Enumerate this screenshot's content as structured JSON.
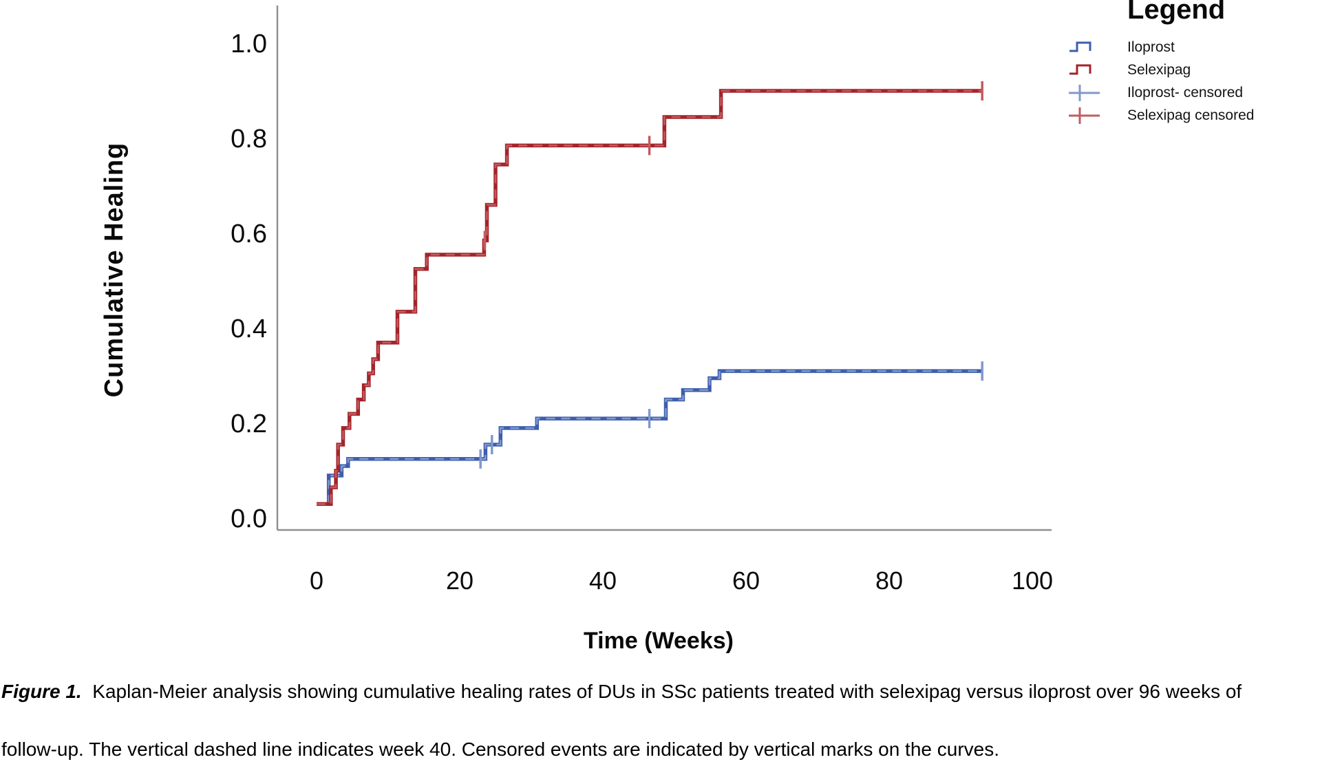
{
  "figure": {
    "caption_prefix": "Figure 1.",
    "caption_line1": "  Kaplan-Meier analysis showing cumulative healing rates of DUs in SSc patients treated with selexipag versus iloprost over 96 weeks of",
    "caption_line2": "follow-up. The vertical dashed line indicates week 40. Censored events are indicated by vertical marks on the curves."
  },
  "legend": {
    "title": "Legend",
    "items": [
      {
        "label": "Iloprost",
        "symbol": "step-line-icon",
        "color_key": "blue"
      },
      {
        "label": "Selexipag",
        "symbol": "step-line-icon",
        "color_key": "red"
      },
      {
        "label": "Iloprost- censored",
        "symbol": "plus-tick-icon",
        "color_key": "blue_light"
      },
      {
        "label": "Selexipag censored",
        "symbol": "plus-tick-icon",
        "color_key": "red_light"
      }
    ]
  },
  "colors": {
    "red": "#a3242a",
    "red_light": "#c25b60",
    "blue": "#3d5eac",
    "blue_light": "#8098cd",
    "axis": "#8f8f8f",
    "text": "#0a0a0a"
  },
  "chart_data": {
    "type": "line",
    "subtype": "kaplan-meier-step",
    "title": "",
    "xlabel": "Time (Weeks)",
    "ylabel": "Cumulative Healing",
    "xlim": [
      0,
      100
    ],
    "ylim": [
      0,
      1
    ],
    "xticks": [
      0,
      20,
      40,
      60,
      80,
      100
    ],
    "ytick_labels": [
      "0.0",
      "0.2",
      "0.4",
      "0.6",
      "0.8",
      "1.0"
    ],
    "grid": false,
    "legend_position": "top-right",
    "series": [
      {
        "name": "Iloprost",
        "color_key": "blue",
        "steps": [
          [
            1.7,
            0.03
          ],
          [
            1.7,
            0.09
          ],
          [
            3.5,
            0.09
          ],
          [
            3.5,
            0.11
          ],
          [
            4.4,
            0.11
          ],
          [
            4.4,
            0.125
          ],
          [
            23.6,
            0.125
          ],
          [
            23.6,
            0.155
          ],
          [
            25.7,
            0.155
          ],
          [
            25.7,
            0.19
          ],
          [
            30.8,
            0.19
          ],
          [
            30.8,
            0.21
          ],
          [
            48.8,
            0.21
          ],
          [
            48.8,
            0.25
          ],
          [
            51.2,
            0.25
          ],
          [
            51.2,
            0.27
          ],
          [
            54.9,
            0.27
          ],
          [
            54.9,
            0.295
          ],
          [
            56.3,
            0.295
          ],
          [
            56.3,
            0.31
          ],
          [
            93,
            0.31
          ]
        ],
        "censored": [
          [
            22.9,
            0.125
          ],
          [
            24.5,
            0.155
          ],
          [
            46.5,
            0.21
          ],
          [
            93,
            0.31
          ]
        ]
      },
      {
        "name": "Selexipag",
        "color_key": "red",
        "steps": [
          [
            0,
            0.03
          ],
          [
            2,
            0.03
          ],
          [
            2,
            0.065
          ],
          [
            2.7,
            0.065
          ],
          [
            2.7,
            0.1
          ],
          [
            3,
            0.1
          ],
          [
            3,
            0.155
          ],
          [
            3.7,
            0.155
          ],
          [
            3.7,
            0.19
          ],
          [
            4.6,
            0.19
          ],
          [
            4.6,
            0.22
          ],
          [
            5.8,
            0.22
          ],
          [
            5.8,
            0.25
          ],
          [
            6.6,
            0.25
          ],
          [
            6.6,
            0.28
          ],
          [
            7.3,
            0.28
          ],
          [
            7.3,
            0.305
          ],
          [
            7.9,
            0.305
          ],
          [
            7.9,
            0.335
          ],
          [
            8.6,
            0.335
          ],
          [
            8.6,
            0.37
          ],
          [
            11.3,
            0.37
          ],
          [
            11.3,
            0.435
          ],
          [
            13.8,
            0.435
          ],
          [
            13.8,
            0.525
          ],
          [
            15.4,
            0.525
          ],
          [
            15.4,
            0.555
          ],
          [
            23.4,
            0.555
          ],
          [
            23.4,
            0.585
          ],
          [
            23.8,
            0.585
          ],
          [
            23.8,
            0.66
          ],
          [
            25,
            0.66
          ],
          [
            25,
            0.745
          ],
          [
            26.6,
            0.745
          ],
          [
            26.6,
            0.785
          ],
          [
            48.6,
            0.785
          ],
          [
            48.6,
            0.845
          ],
          [
            56.5,
            0.845
          ],
          [
            56.5,
            0.9
          ],
          [
            93,
            0.9
          ]
        ],
        "censored": [
          [
            23.5,
            0.585
          ],
          [
            46.5,
            0.785
          ],
          [
            93,
            0.9
          ]
        ]
      }
    ]
  }
}
